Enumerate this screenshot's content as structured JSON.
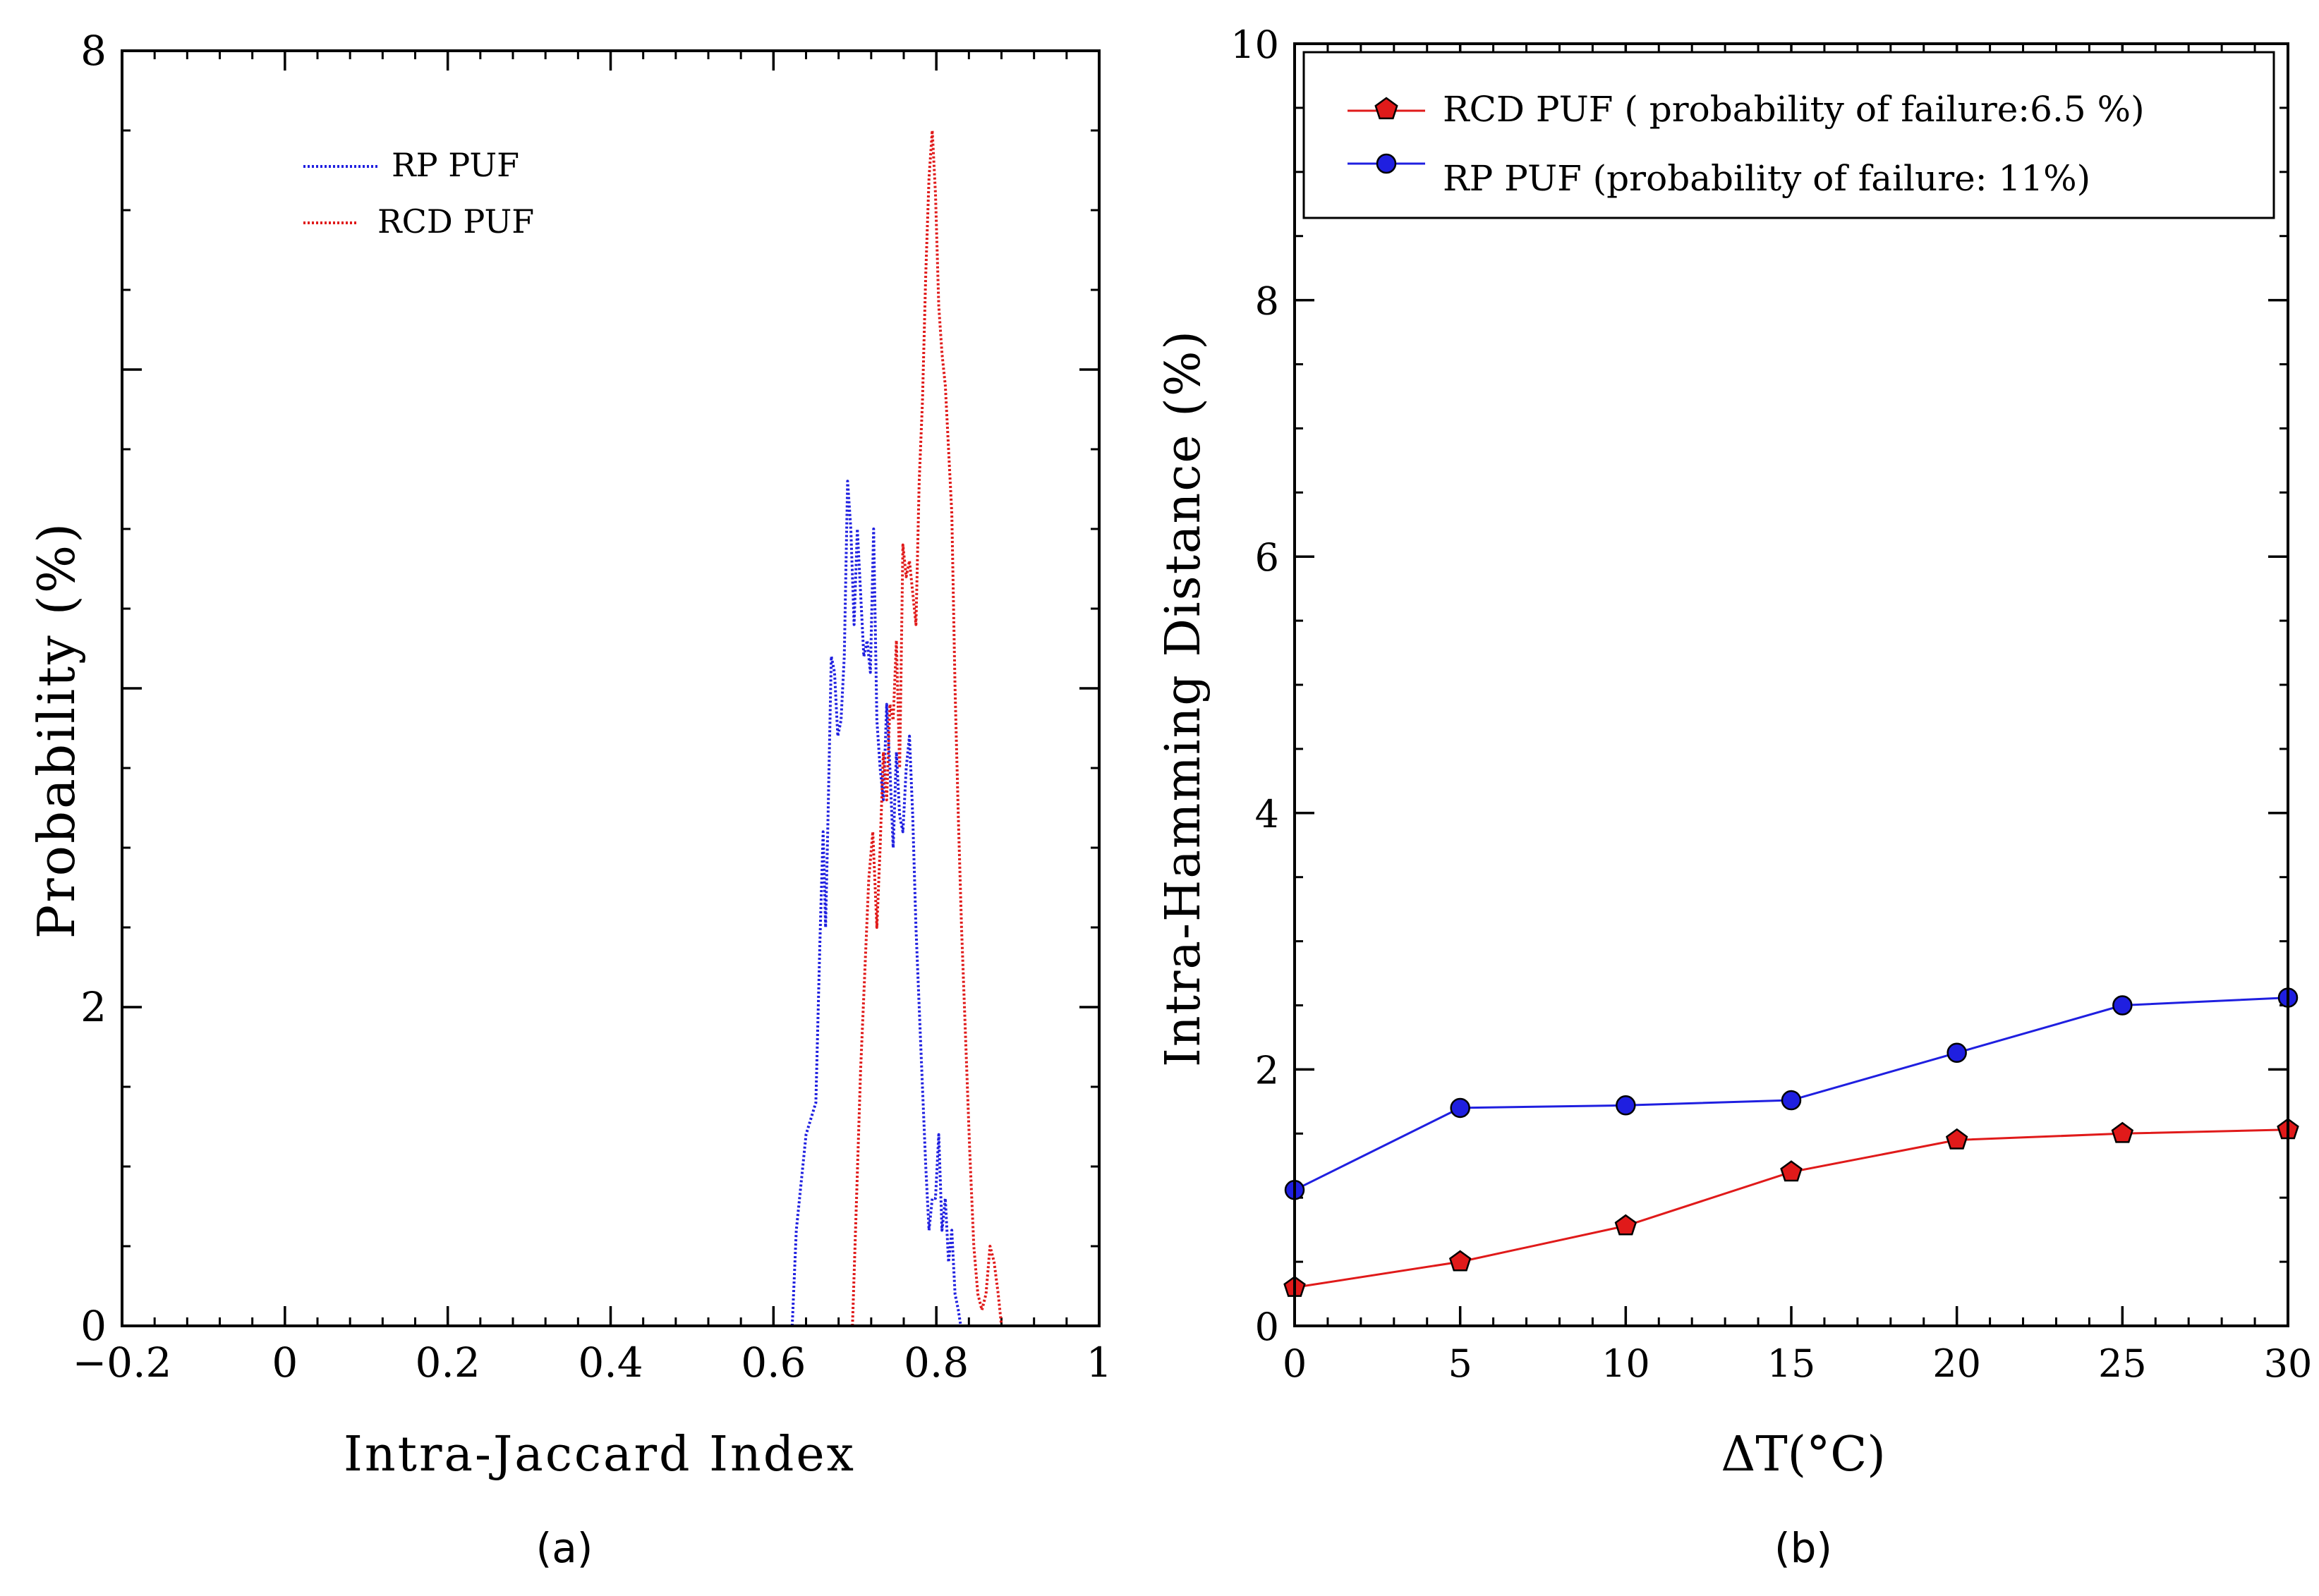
{
  "chart_data": [
    {
      "type": "line",
      "panel_label": "(a)",
      "xlabel": "Intra-Jaccard Index",
      "ylabel": "Probability (%)",
      "xlim": [
        -0.2,
        1.0
      ],
      "ylim": [
        0,
        8
      ],
      "x_ticks": [
        -0.2,
        0,
        0.2,
        0.4,
        0.6,
        0.8,
        1
      ],
      "x_tick_labels": [
        "−0.2",
        "0",
        "0.2",
        "0.4",
        "0.6",
        "0.8",
        "1"
      ],
      "y_ticks": [
        0,
        2,
        8
      ],
      "y_tick_labels": [
        "0",
        "2",
        "8"
      ],
      "legend_position": "upper-left",
      "series": [
        {
          "name": "RP PUF",
          "color": "#1f1fe0",
          "style": "dotted",
          "x": [
            0.623,
            0.628,
            0.634,
            0.64,
            0.646,
            0.652,
            0.657,
            0.661,
            0.664,
            0.667,
            0.671,
            0.675,
            0.679,
            0.683,
            0.687,
            0.691,
            0.695,
            0.699,
            0.703,
            0.707,
            0.711,
            0.715,
            0.719,
            0.723,
            0.727,
            0.731,
            0.735,
            0.739,
            0.743,
            0.747,
            0.751,
            0.755,
            0.759,
            0.763,
            0.767,
            0.771,
            0.775,
            0.779,
            0.783,
            0.787,
            0.791,
            0.795,
            0.799,
            0.803,
            0.807,
            0.811,
            0.815,
            0.819,
            0.823,
            0.827,
            0.83
          ],
          "y": [
            0.0,
            0.6,
            0.9,
            1.2,
            1.3,
            1.4,
            2.4,
            3.1,
            2.5,
            3.2,
            4.2,
            4.1,
            3.7,
            3.8,
            4.2,
            5.3,
            5.0,
            4.4,
            5.0,
            4.6,
            4.2,
            4.3,
            4.1,
            5.0,
            3.8,
            3.5,
            3.3,
            3.9,
            3.5,
            3.0,
            3.6,
            3.2,
            3.1,
            3.5,
            3.7,
            3.2,
            2.5,
            2.0,
            1.5,
            1.0,
            0.6,
            0.8,
            0.8,
            1.2,
            0.6,
            0.8,
            0.4,
            0.6,
            0.2,
            0.1,
            0.0
          ]
        },
        {
          "name": "RCD PUF",
          "color": "#e01a1a",
          "style": "dotted",
          "x": [
            0.697,
            0.702,
            0.707,
            0.712,
            0.717,
            0.722,
            0.727,
            0.731,
            0.735,
            0.739,
            0.743,
            0.747,
            0.751,
            0.755,
            0.759,
            0.763,
            0.767,
            0.771,
            0.775,
            0.779,
            0.783,
            0.787,
            0.791,
            0.795,
            0.799,
            0.803,
            0.807,
            0.811,
            0.815,
            0.819,
            0.823,
            0.827,
            0.831,
            0.836,
            0.841,
            0.846,
            0.851,
            0.856,
            0.861,
            0.866,
            0.871,
            0.876,
            0.88
          ],
          "y": [
            0.0,
            0.8,
            1.6,
            2.2,
            2.8,
            3.1,
            2.5,
            3.0,
            3.6,
            3.3,
            3.9,
            3.8,
            4.3,
            3.5,
            4.9,
            4.7,
            4.8,
            4.6,
            4.4,
            5.3,
            5.8,
            6.6,
            7.2,
            7.5,
            7.1,
            6.4,
            6.1,
            5.9,
            5.5,
            5.1,
            4.0,
            3.2,
            2.5,
            1.8,
            1.1,
            0.5,
            0.2,
            0.1,
            0.2,
            0.5,
            0.4,
            0.2,
            0.0
          ]
        }
      ]
    },
    {
      "type": "line",
      "panel_label": "(b)",
      "xlabel": "ΔT(°C)",
      "ylabel": "Intra-Hamming Distance (%)",
      "xlim": [
        0,
        30
      ],
      "ylim": [
        0,
        10
      ],
      "x_ticks": [
        0,
        5,
        10,
        15,
        20,
        25,
        30
      ],
      "x_tick_labels": [
        "0",
        "5",
        "10",
        "15",
        "20",
        "25",
        "30"
      ],
      "y_ticks": [
        0,
        2,
        4,
        6,
        8,
        10
      ],
      "y_tick_labels": [
        "0",
        "2",
        "4",
        "6",
        "8",
        "10"
      ],
      "legend_position": "top",
      "series": [
        {
          "name": "RCD PUF ( probability of failure:6.5 %)",
          "color": "#e01a1a",
          "line_color": "#e01a1a",
          "marker": "pentagon",
          "x": [
            0,
            5,
            10,
            15,
            20,
            25,
            30
          ],
          "y": [
            0.3,
            0.5,
            0.78,
            1.2,
            1.45,
            1.5,
            1.53
          ]
        },
        {
          "name": "RP PUF (probability of failure: 11%)",
          "color": "#1f1fe0",
          "line_color": "#1f1fe0",
          "marker": "circle",
          "x": [
            0,
            5,
            10,
            15,
            20,
            25,
            30
          ],
          "y": [
            1.06,
            1.7,
            1.72,
            1.76,
            2.13,
            2.5,
            2.56
          ]
        }
      ]
    }
  ]
}
